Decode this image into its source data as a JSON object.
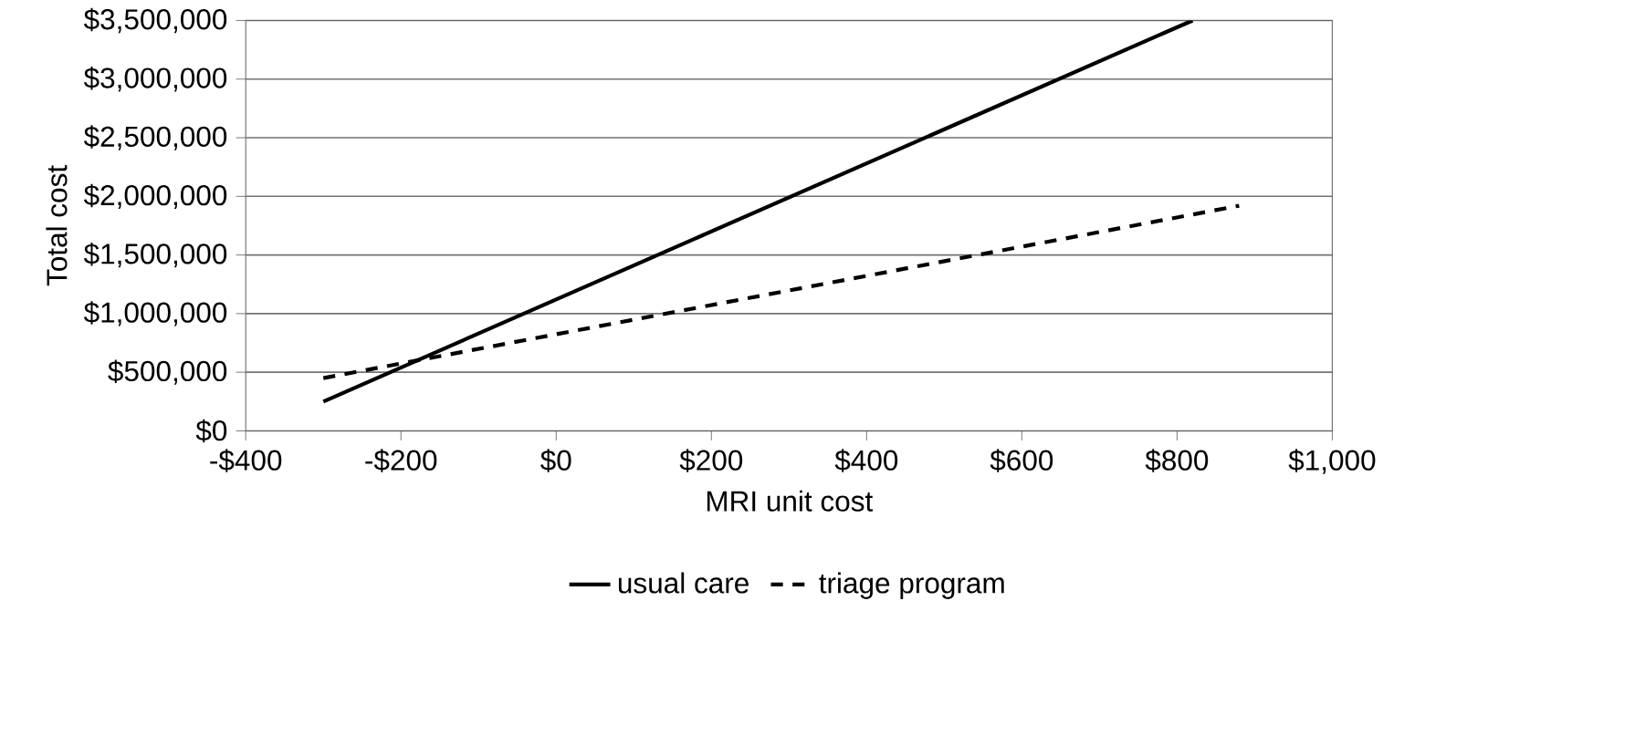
{
  "chart_data": {
    "type": "line",
    "xlabel": "MRI unit cost",
    "ylabel": "Total cost",
    "series": [
      {
        "name": "usual care",
        "color": "#000000",
        "x": [
          -300,
          820
        ],
        "values": [
          250000,
          3500000
        ],
        "line_style": "solid"
      },
      {
        "name": "triage program",
        "color": "#000000",
        "x": [
          -300,
          880
        ],
        "values": [
          450000,
          1920000
        ],
        "line_style": "dashed"
      }
    ],
    "xlim": [
      -400,
      1000
    ],
    "xticks": [
      {
        "value": -400,
        "label": "-$400"
      },
      {
        "value": -200,
        "label": "-$200"
      },
      {
        "value": 0,
        "label": "$0"
      },
      {
        "value": 200,
        "label": "$200"
      },
      {
        "value": 400,
        "label": "$400"
      },
      {
        "value": 600,
        "label": "$600"
      },
      {
        "value": 800,
        "label": "$800"
      },
      {
        "value": 1000,
        "label": "$1,000"
      }
    ],
    "ylim": [
      0,
      3500000
    ],
    "yticks": [
      {
        "value": 0,
        "label": "$0"
      },
      {
        "value": 500000,
        "label": "$500,000"
      },
      {
        "value": 1000000,
        "label": "$1,000,000"
      },
      {
        "value": 1500000,
        "label": "$1,500,000"
      },
      {
        "value": 2000000,
        "label": "$2,000,000"
      },
      {
        "value": 2500000,
        "label": "$2,500,000"
      },
      {
        "value": 3000000,
        "label": "$3,000,000"
      },
      {
        "value": 3500000,
        "label": "$3,500,000"
      }
    ],
    "grid": "y",
    "legend": "bottom",
    "marker": "none"
  }
}
